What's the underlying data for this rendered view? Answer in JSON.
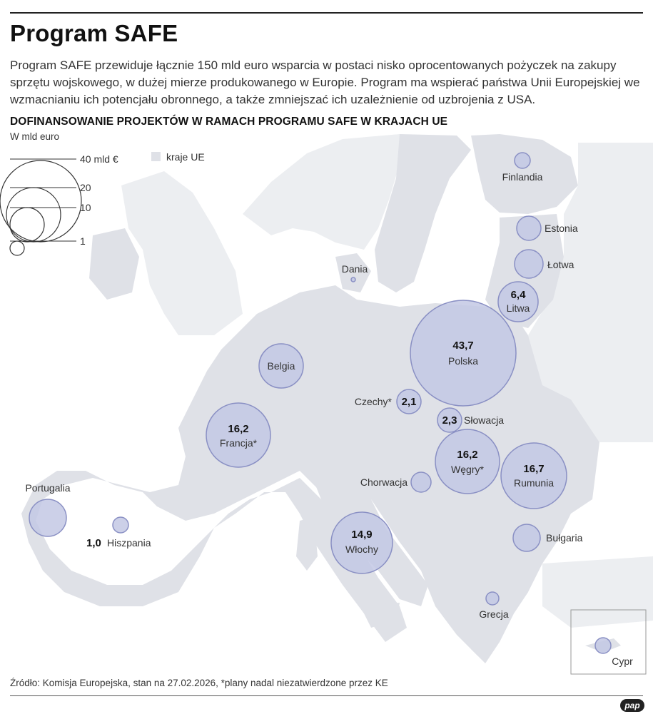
{
  "header": {
    "title": "Program SAFE",
    "intro": "Program SAFE przewiduje łącznie 150 mld euro wsparcia w postaci nisko oprocentowanych pożyczek na zakupy sprzętu wojskowego, w dużej mierze produkowanego w Europie. Program ma wspierać państwa Unii Europejskiej we wzmacnianiu ich potencjału obronnego, a także zmniejszać ich uzależnienie od uzbrojenia z USA.",
    "subtitle": "DOFINANSOWANIE PROJEKTÓW W RAMACH PROGRAMU SAFE W KRAJACH UE",
    "unit": "W mld euro"
  },
  "legend": {
    "size_labels": [
      "40 mld €",
      "20",
      "10",
      "1"
    ],
    "size_values": [
      40,
      20,
      10,
      1
    ],
    "region_label": "kraje UE"
  },
  "colors": {
    "bubble_fill": "#c3c8e4",
    "bubble_stroke": "#8a90c4",
    "eu_land": "#dfe1e7",
    "non_eu_land": "#eceef1",
    "sea": "#ffffff"
  },
  "countries": [
    {
      "name": "Finlandia",
      "value": null,
      "value_label": ""
    },
    {
      "name": "Estonia",
      "value": null,
      "value_label": ""
    },
    {
      "name": "Łotwa",
      "value": null,
      "value_label": ""
    },
    {
      "name": "Litwa",
      "value": 6.4,
      "value_label": "6,4"
    },
    {
      "name": "Dania",
      "value": null,
      "value_label": ""
    },
    {
      "name": "Polska",
      "value": 43.7,
      "value_label": "43,7"
    },
    {
      "name": "Belgia",
      "value": null,
      "value_label": ""
    },
    {
      "name": "Czechy*",
      "value": 2.1,
      "value_label": "2,1"
    },
    {
      "name": "Słowacja",
      "value": 2.3,
      "value_label": "2,3"
    },
    {
      "name": "Francja*",
      "value": 16.2,
      "value_label": "16,2"
    },
    {
      "name": "Węgry*",
      "value": 16.2,
      "value_label": "16,2"
    },
    {
      "name": "Rumunia",
      "value": 16.7,
      "value_label": "16,7"
    },
    {
      "name": "Chorwacja",
      "value": null,
      "value_label": ""
    },
    {
      "name": "Portugalia",
      "value": null,
      "value_label": ""
    },
    {
      "name": "Hiszpania",
      "value": 1.0,
      "value_label": "1,0"
    },
    {
      "name": "Włochy",
      "value": 14.9,
      "value_label": "14,9"
    },
    {
      "name": "Bułgaria",
      "value": null,
      "value_label": ""
    },
    {
      "name": "Grecja",
      "value": null,
      "value_label": ""
    },
    {
      "name": "Cypr",
      "value": null,
      "value_label": ""
    }
  ],
  "footer": {
    "source": "Źródło: Komisja Europejska, stan na 27.02.2026, *plany nadal niezatwierdzone przez KE",
    "logo": "pap"
  }
}
